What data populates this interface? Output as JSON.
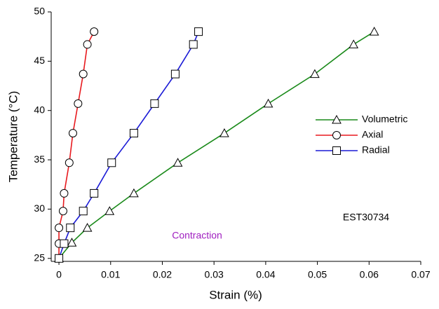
{
  "chart_data": {
    "type": "line",
    "xlabel": "Strain (%)",
    "ylabel": "Temperature (°C)",
    "xlim": [
      -0.0015,
      0.07
    ],
    "ylim": [
      24.7,
      50
    ],
    "xticks": [
      0,
      0.01,
      0.02,
      0.03,
      0.04,
      0.05,
      0.06,
      0.07
    ],
    "yticks": [
      25,
      30,
      35,
      40,
      45,
      50
    ],
    "grid": false,
    "annotations": [
      "EST30734",
      "Contraction"
    ],
    "series": [
      {
        "name": "Volumetric",
        "color": "#1a8a1a",
        "marker": "triangle",
        "x": [
          0,
          0.0025,
          0.0055,
          0.0098,
          0.0145,
          0.023,
          0.032,
          0.0405,
          0.0495,
          0.057,
          0.061
        ],
        "values": [
          25,
          26.6,
          28.1,
          29.8,
          31.6,
          34.7,
          37.7,
          40.7,
          43.7,
          46.7,
          48
        ]
      },
      {
        "name": "Axial",
        "color": "#e8191e",
        "marker": "circle",
        "x": [
          0,
          0,
          0,
          0.0008,
          0.001,
          0.002,
          0.0027,
          0.0037,
          0.0047,
          0.0055,
          0.0068
        ],
        "values": [
          25,
          26.5,
          28.1,
          29.8,
          31.6,
          34.7,
          37.7,
          40.7,
          43.7,
          46.7,
          48
        ]
      },
      {
        "name": "Radial",
        "color": "#1a1ad6",
        "marker": "square",
        "x": [
          0,
          0.001,
          0.0022,
          0.0047,
          0.0068,
          0.0102,
          0.0145,
          0.0185,
          0.0225,
          0.026,
          0.027
        ],
        "values": [
          25,
          26.5,
          28.1,
          29.8,
          31.6,
          34.7,
          37.7,
          40.7,
          43.7,
          46.7,
          48
        ]
      }
    ]
  }
}
